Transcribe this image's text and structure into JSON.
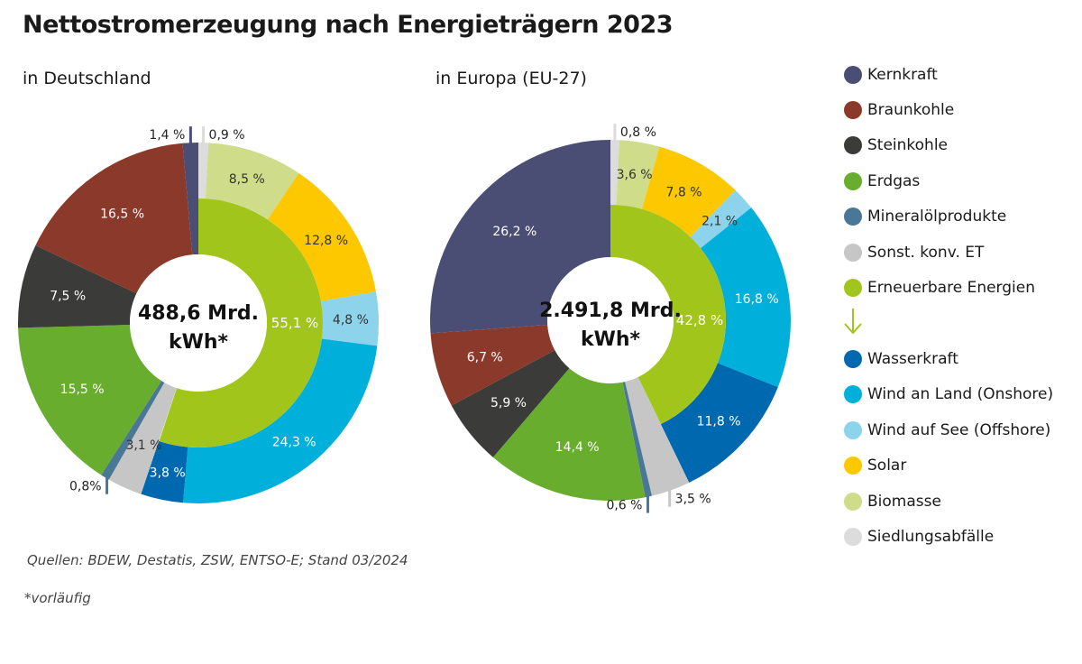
{
  "title": "Nettostromerzeugung nach Energieträgern 2023",
  "source": "Quellen: BDEW, Destatis, ZSW, ENTSO-E; Stand 03/2024",
  "footnote": "*vorläufig",
  "colors": {
    "Kernkraft": "#4a4e74",
    "Braunkohle": "#8b392a",
    "Steinkohle": "#3b3b39",
    "Erdgas": "#68ad2e",
    "Mineralölprodukte": "#4b7797",
    "Sonst. konv. ET": "#c6c6c6",
    "Erneuerbare Energien": "#a2c51b",
    "Wasserkraft": "#0068af",
    "Wind an Land (Onshore)": "#00afda",
    "Wind auf See (Offshore)": "#8ed3ec",
    "Solar": "#fdc800",
    "Biomasse": "#cfdc8a",
    "Siedlungsabfälle": "#dcdcdc"
  },
  "legend": {
    "items_top": [
      "Kernkraft",
      "Braunkohle",
      "Steinkohle",
      "Erdgas",
      "Mineralölprodukte",
      "Sonst. konv. ET",
      "Erneuerbare Energien"
    ],
    "items_bottom": [
      "Wasserkraft",
      "Wind an Land (Onshore)",
      "Wind auf See (Offshore)",
      "Solar",
      "Biomasse",
      "Siedlungsabfälle"
    ]
  },
  "chart_data": [
    {
      "type": "pie",
      "subtitle": "in Deutschland",
      "center_line1": "488,6 Mrd.",
      "center_line2": "kWh*",
      "inner_ring": {
        "category": "Erneuerbare Energien",
        "value": 55.1,
        "label": "55,1 %"
      },
      "slices": [
        {
          "category": "Siedlungsabfälle",
          "value": 0.9,
          "label": "0,9 %",
          "renewable": true
        },
        {
          "category": "Biomasse",
          "value": 8.5,
          "label": "8,5 %",
          "renewable": true
        },
        {
          "category": "Solar",
          "value": 12.8,
          "label": "12,8 %",
          "renewable": true
        },
        {
          "category": "Wind auf See (Offshore)",
          "value": 4.8,
          "label": "4,8 %",
          "renewable": true
        },
        {
          "category": "Wind an Land (Onshore)",
          "value": 24.3,
          "label": "24,3 %",
          "renewable": true
        },
        {
          "category": "Wasserkraft",
          "value": 3.8,
          "label": "3,8 %",
          "renewable": true
        },
        {
          "category": "Sonst. konv. ET",
          "value": 3.1,
          "label": "3,1 %",
          "renewable": false
        },
        {
          "category": "Mineralölprodukte",
          "value": 0.8,
          "label": "0,8%",
          "renewable": false
        },
        {
          "category": "Erdgas",
          "value": 15.5,
          "label": "15,5 %",
          "renewable": false
        },
        {
          "category": "Steinkohle",
          "value": 7.5,
          "label": "7,5 %",
          "renewable": false
        },
        {
          "category": "Braunkohle",
          "value": 16.5,
          "label": "16,5 %",
          "renewable": false
        },
        {
          "category": "Kernkraft",
          "value": 1.4,
          "label": "1,4 %",
          "renewable": false
        }
      ]
    },
    {
      "type": "pie",
      "subtitle": "in Europa (EU-27)",
      "center_line1": "2.491,8 Mrd.",
      "center_line2": "kWh*",
      "inner_ring": {
        "category": "Erneuerbare Energien",
        "value": 42.8,
        "label": "42,8 %"
      },
      "slices": [
        {
          "category": "Siedlungsabfälle",
          "value": 0.8,
          "label": "0,8 %",
          "renewable": true
        },
        {
          "category": "Biomasse",
          "value": 3.6,
          "label": "3,6 %",
          "renewable": true
        },
        {
          "category": "Solar",
          "value": 7.8,
          "label": "7,8 %",
          "renewable": true
        },
        {
          "category": "Wind auf See (Offshore)",
          "value": 2.1,
          "label": "2,1 %",
          "renewable": true
        },
        {
          "category": "Wind an Land (Onshore)",
          "value": 16.8,
          "label": "16,8 %",
          "renewable": true
        },
        {
          "category": "Wasserkraft",
          "value": 11.8,
          "label": "11,8 %",
          "renewable": true
        },
        {
          "category": "Sonst. konv. ET",
          "value": 3.5,
          "label": "3,5 %",
          "renewable": false
        },
        {
          "category": "Mineralölprodukte",
          "value": 0.6,
          "label": "0,6 %",
          "renewable": false
        },
        {
          "category": "Erdgas",
          "value": 14.4,
          "label": "14,4 %",
          "renewable": false
        },
        {
          "category": "Steinkohle",
          "value": 5.9,
          "label": "5,9 %",
          "renewable": false
        },
        {
          "category": "Braunkohle",
          "value": 6.7,
          "label": "6,7 %",
          "renewable": false
        },
        {
          "category": "Kernkraft",
          "value": 26.2,
          "label": "26,2 %",
          "renewable": false
        }
      ]
    }
  ]
}
